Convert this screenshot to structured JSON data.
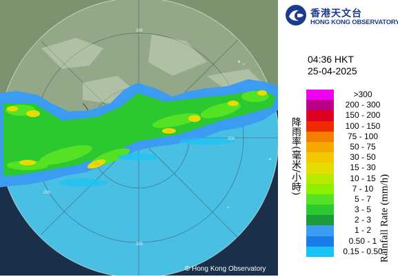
{
  "header": {
    "logo_cn": "香港天文台",
    "logo_en": "HONG KONG OBSERVATORY",
    "time": "04:36 HKT",
    "date": "25-04-2025"
  },
  "legend": {
    "title_cn": "降雨率(毫米/小時)",
    "title_en": "Rainfall Rate (mm/h)",
    "items": [
      {
        "label": ">300",
        "color": "#f000f0"
      },
      {
        "label": "200 - 300",
        "color": "#bb0088"
      },
      {
        "label": "150 - 200",
        "color": "#e00022"
      },
      {
        "label": "100 - 150",
        "color": "#f02a00"
      },
      {
        "label": "75 - 100",
        "color": "#f27f00"
      },
      {
        "label": "50 - 75",
        "color": "#f3a900"
      },
      {
        "label": "30 - 50",
        "color": "#f2c800"
      },
      {
        "label": "15 - 30",
        "color": "#e4dd00"
      },
      {
        "label": "10 - 15",
        "color": "#b8ea00"
      },
      {
        "label": "7 - 10",
        "color": "#8ef000"
      },
      {
        "label": "5 - 7",
        "color": "#55e225"
      },
      {
        "label": "3 - 5",
        "color": "#2bc830"
      },
      {
        "label": "2 - 3",
        "color": "#1b9c3a"
      },
      {
        "label": "1 - 2",
        "color": "#3c9cf2"
      },
      {
        "label": "0.50 - 1",
        "color": "#1a7ce8"
      },
      {
        "label": "0.15 - 0.50",
        "color": "#19c3f5"
      }
    ]
  },
  "map": {
    "range_labels": [
      "200",
      "200",
      "200",
      "200"
    ],
    "copyright": "© Hong Kong Observatory"
  }
}
